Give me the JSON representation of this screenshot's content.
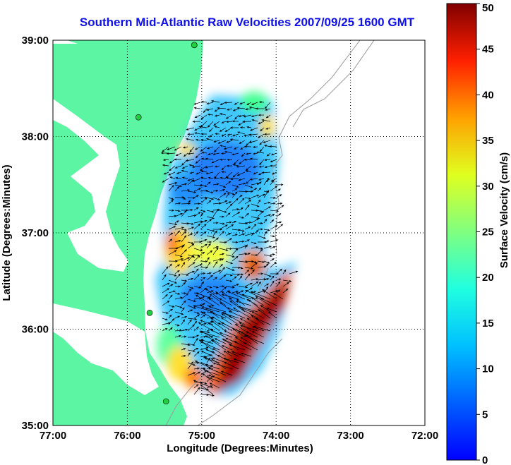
{
  "title": "Southern Mid-Atlantic Raw Velocities 2007/09/25 1600 GMT",
  "map": {
    "xlabel": "Longitude (Degrees:Minutes)",
    "ylabel": "Latitude (Degrees:Minutes)",
    "x_ticks": [
      "77:00",
      "76:00",
      "75:00",
      "74:00",
      "73:00",
      "72:00"
    ],
    "y_ticks": [
      "39:00",
      "38:00",
      "37:00",
      "36:00",
      "35:00"
    ],
    "x_range": [
      -77,
      -72
    ],
    "y_range": [
      35,
      39
    ],
    "grid": "dotted",
    "land_color": "#5cf5a4",
    "water_color": "#ffffff"
  },
  "colorbar": {
    "label": "Surface Velocity (cm/s)",
    "ticks": [
      "0",
      "5",
      "10",
      "15",
      "20",
      "25",
      "30",
      "35",
      "40",
      "45",
      "50"
    ],
    "range": [
      0,
      50
    ],
    "colormap": "jet"
  },
  "stations": [
    {
      "lon": -75.1,
      "lat": 38.95,
      "color": "#ff2020"
    },
    {
      "lon": -75.1,
      "lat": 38.95,
      "color": "#20d040"
    },
    {
      "lon": -75.85,
      "lat": 38.2,
      "color": "#20d040"
    },
    {
      "lon": -75.7,
      "lat": 36.17,
      "color": "#20d040"
    },
    {
      "lon": -75.48,
      "lat": 35.25,
      "color": "#20d040"
    }
  ]
}
